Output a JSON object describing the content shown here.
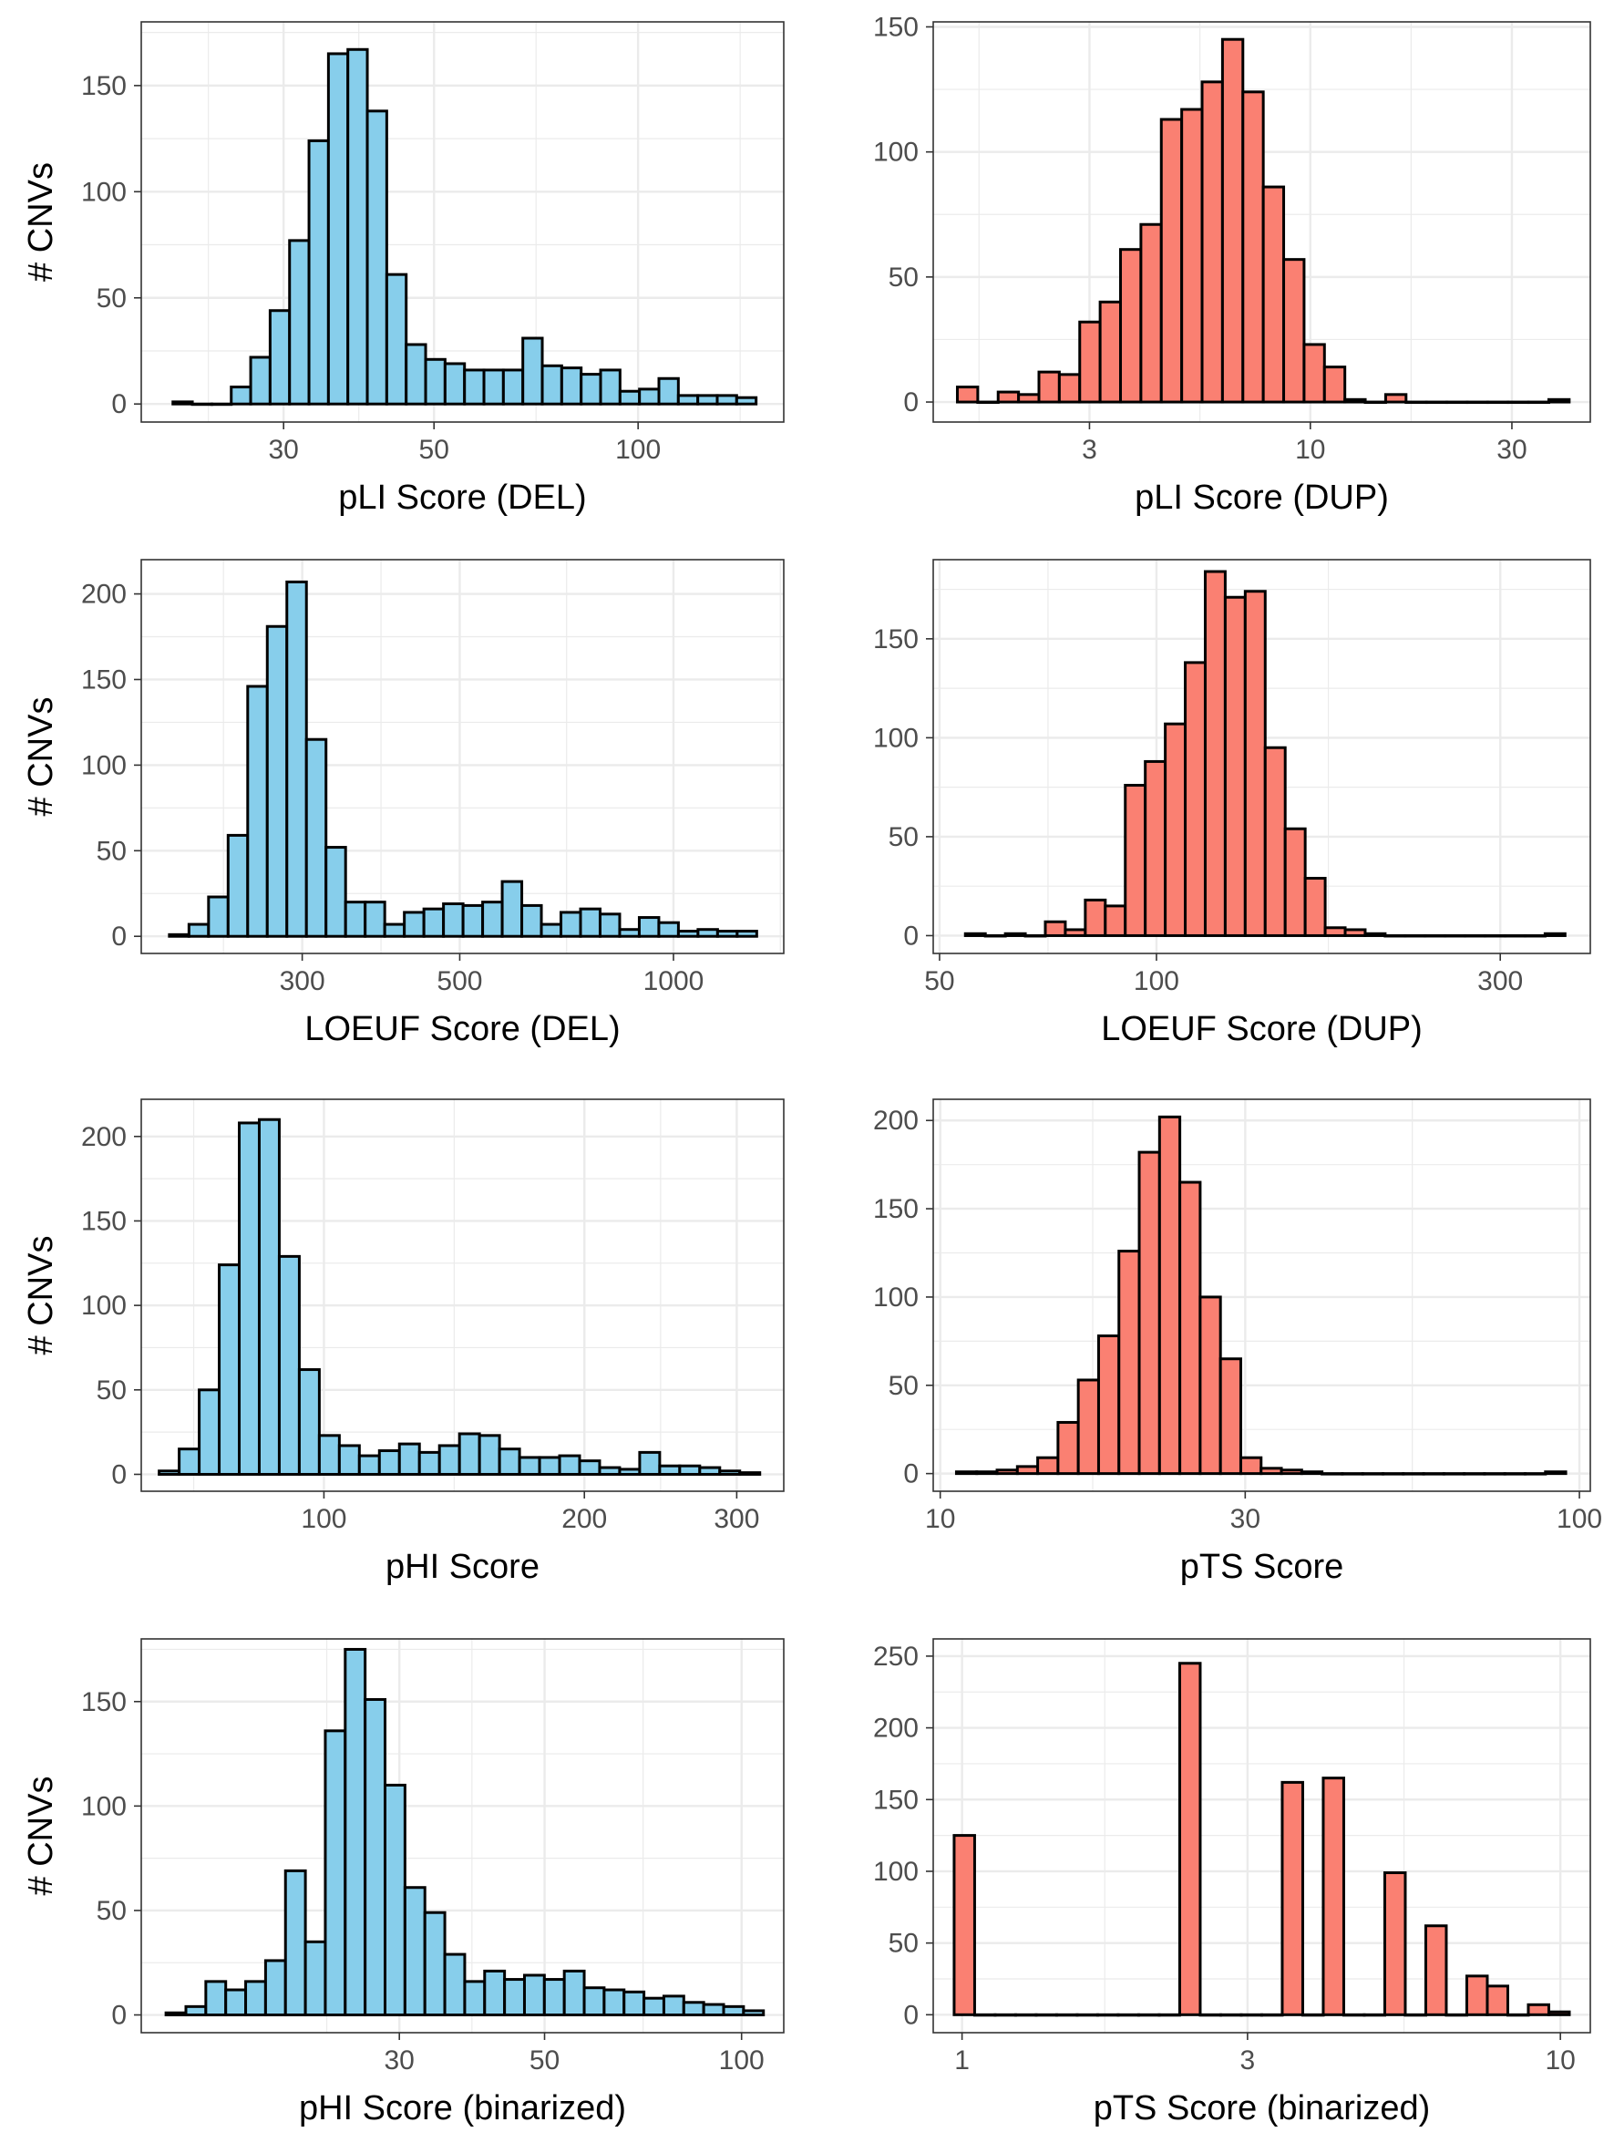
{
  "colors": {
    "del": "#87CEEB",
    "dup": "#FA8072",
    "outline": "#000000",
    "grid": "#EBEBEB",
    "panel_border": "#333333"
  },
  "chart_data": [
    {
      "type": "bar",
      "name": "pli-del",
      "xlabel": "pLI Score (DEL)",
      "ylabel": "# CNVs",
      "scale": "log",
      "color": "del",
      "xlim": [
        18.5,
        164
      ],
      "ylim": [
        -8.5,
        180
      ],
      "xticks": [
        30,
        50,
        100
      ],
      "xtick_labels": [
        "30",
        "50",
        "100"
      ],
      "yticks": [
        0,
        50,
        100,
        150
      ],
      "ytick_labels": [
        "0",
        "50",
        "100",
        "150"
      ],
      "bin_range": [
        20.6,
        149.3
      ],
      "values": [
        1,
        0,
        0,
        8,
        22,
        44,
        77,
        124,
        165,
        167,
        138,
        61,
        28,
        21,
        19,
        16,
        16,
        16,
        31,
        18,
        17,
        14,
        16,
        6,
        7,
        12,
        4,
        4,
        4,
        3
      ]
    },
    {
      "type": "bar",
      "name": "pli-dup",
      "xlabel": "pLI Score (DUP)",
      "ylabel": "",
      "scale": "log",
      "color": "dup",
      "xlim": [
        1.28,
        46
      ],
      "ylim": [
        -8,
        152
      ],
      "xticks": [
        3,
        10,
        30
      ],
      "xtick_labels": [
        "3",
        "10",
        "30"
      ],
      "yticks": [
        0,
        50,
        100,
        150
      ],
      "ytick_labels": [
        "0",
        "50",
        "100",
        "150"
      ],
      "bin_range": [
        1.46,
        41
      ],
      "values": [
        6,
        0,
        4,
        3,
        12,
        11,
        32,
        40,
        61,
        71,
        113,
        117,
        128,
        145,
        124,
        86,
        57,
        23,
        14,
        1,
        0,
        3,
        0,
        0,
        0,
        0,
        0,
        0,
        0,
        1
      ]
    },
    {
      "type": "bar",
      "name": "loeuf-del",
      "xlabel": "LOEUF Score (DEL)",
      "ylabel": "# CNVs",
      "scale": "log",
      "color": "del",
      "xlim": [
        178,
        1430
      ],
      "ylim": [
        -10,
        220
      ],
      "xticks": [
        300,
        500,
        1000
      ],
      "xtick_labels": [
        "300",
        "500",
        "1000"
      ],
      "yticks": [
        0,
        50,
        100,
        150,
        200
      ],
      "ytick_labels": [
        "0",
        "50",
        "100",
        "150",
        "200"
      ],
      "bin_range": [
        195,
        1310
      ],
      "values": [
        1,
        7,
        23,
        59,
        146,
        181,
        207,
        115,
        52,
        20,
        20,
        7,
        14,
        16,
        19,
        18,
        20,
        32,
        18,
        7,
        14,
        16,
        13,
        4,
        11,
        8,
        3,
        4,
        3,
        3
      ]
    },
    {
      "type": "bar",
      "name": "loeuf-dup",
      "xlabel": "LOEUF Score (DUP)",
      "ylabel": "",
      "scale": "log",
      "color": "dup",
      "xlim": [
        49,
        400
      ],
      "ylim": [
        -9,
        190
      ],
      "xticks": [
        50,
        100,
        300
      ],
      "xtick_labels": [
        "50",
        "100",
        "300"
      ],
      "yticks": [
        0,
        50,
        100,
        150
      ],
      "ytick_labels": [
        "0",
        "50",
        "100",
        "150"
      ],
      "bin_range": [
        54.3,
        369
      ],
      "values": [
        1,
        0,
        1,
        0,
        7,
        3,
        18,
        15,
        76,
        88,
        107,
        138,
        184,
        171,
        174,
        95,
        54,
        29,
        4,
        3,
        1,
        0,
        0,
        0,
        0,
        0,
        0,
        0,
        0,
        1
      ]
    },
    {
      "type": "bar",
      "name": "phi",
      "xlabel": "pHI Score",
      "ylabel": "# CNVs",
      "scale": "log",
      "color": "del",
      "xlim": [
        61.5,
        340
      ],
      "ylim": [
        -10,
        222
      ],
      "xticks": [
        100,
        200,
        300
      ],
      "xtick_labels": [
        "100",
        "200",
        "300"
      ],
      "yticks": [
        0,
        50,
        100,
        150,
        200
      ],
      "ytick_labels": [
        "0",
        "50",
        "100",
        "150",
        "200"
      ],
      "bin_range": [
        64.5,
        319
      ],
      "values": [
        2,
        15,
        50,
        124,
        208,
        210,
        129,
        62,
        23,
        17,
        11,
        14,
        18,
        13,
        17,
        24,
        23,
        15,
        10,
        10,
        11,
        8,
        4,
        3,
        13,
        5,
        5,
        4,
        2,
        1
      ]
    },
    {
      "type": "bar",
      "name": "pts",
      "xlabel": "pTS Score",
      "ylabel": "",
      "scale": "log",
      "color": "dup",
      "xlim": [
        9.75,
        104
      ],
      "ylim": [
        -10,
        212
      ],
      "xticks": [
        10,
        30,
        100
      ],
      "xtick_labels": [
        "10",
        "30",
        "100"
      ],
      "yticks": [
        0,
        50,
        100,
        150,
        200
      ],
      "ytick_labels": [
        "0",
        "50",
        "100",
        "150",
        "200"
      ],
      "bin_range": [
        10.6,
        95.2
      ],
      "values": [
        1,
        1,
        2,
        4,
        9,
        29,
        53,
        78,
        126,
        182,
        202,
        165,
        100,
        65,
        9,
        3,
        2,
        1,
        0,
        0,
        0,
        0,
        0,
        0,
        0,
        0,
        0,
        0,
        0,
        1
      ]
    },
    {
      "type": "bar",
      "name": "phi-binarized",
      "xlabel": "pHI Score (binarized)",
      "ylabel": "# CNVs",
      "scale": "log",
      "color": "del",
      "xlim": [
        12.1,
        116
      ],
      "ylim": [
        -8.5,
        180
      ],
      "xticks": [
        30,
        50,
        100
      ],
      "xtick_labels": [
        "30",
        "50",
        "100"
      ],
      "yticks": [
        0,
        50,
        100,
        150
      ],
      "ytick_labels": [
        "0",
        "50",
        "100",
        "150"
      ],
      "bin_range": [
        13.2,
        108
      ],
      "values": [
        1,
        4,
        16,
        12,
        16,
        26,
        69,
        35,
        136,
        175,
        151,
        110,
        61,
        49,
        29,
        16,
        21,
        17,
        19,
        17,
        21,
        13,
        12,
        11,
        8,
        9,
        6,
        5,
        4,
        2
      ]
    },
    {
      "type": "bar",
      "name": "pts-binarized",
      "xlabel": "pTS Score (binarized)",
      "ylabel": "",
      "scale": "log",
      "color": "dup",
      "xlim": [
        0.895,
        11.22
      ],
      "ylim": [
        -12.5,
        262
      ],
      "xticks": [
        1,
        3,
        10
      ],
      "xtick_labels": [
        "1",
        "3",
        "10"
      ],
      "yticks": [
        0,
        50,
        100,
        150,
        200,
        250
      ],
      "ytick_labels": [
        "0",
        "50",
        "100",
        "150",
        "200",
        "250"
      ],
      "bin_range": [
        0.97,
        10.35
      ],
      "values": [
        125,
        0,
        0,
        0,
        0,
        0,
        0,
        0,
        0,
        0,
        0,
        245,
        0,
        0,
        0,
        0,
        162,
        0,
        165,
        0,
        0,
        99,
        0,
        62,
        0,
        27,
        20,
        0,
        7,
        2
      ]
    }
  ]
}
